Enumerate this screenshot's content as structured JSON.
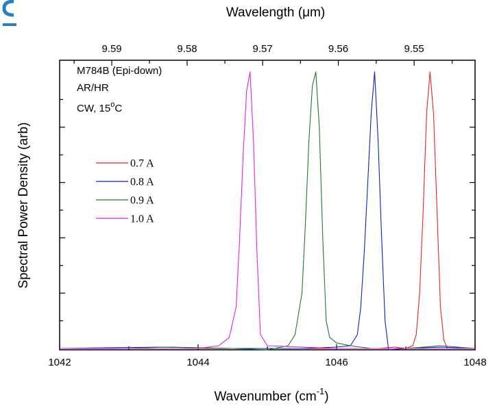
{
  "chart_data": {
    "type": "line",
    "xlabel": "Wavenumber (cm",
    "xlabel_sup": "-1",
    "xlabel_end": ")",
    "ylabel": "Spectral Power Density (arb)",
    "x2label": "Wavelength (μm)",
    "xlim": [
      1042,
      1048
    ],
    "ylim": [
      0,
      1.0
    ],
    "x_ticks": [
      1042,
      1044,
      1046,
      1048
    ],
    "x_tick_labels": [
      "1042",
      "1044",
      "1046",
      "1048"
    ],
    "x2_ticks": [
      9.59,
      9.58,
      9.57,
      9.56,
      9.55
    ],
    "x2_tick_labels": [
      "9.59",
      "9.58",
      "9.57",
      "9.56",
      "9.55"
    ],
    "y_major_ticks": [
      0.2,
      0.4,
      0.6,
      0.8
    ],
    "annotation": {
      "line1": "M784B (Epi-down)",
      "line2": "AR/HR",
      "line3_pre": "CW, 15",
      "line3_sup": "o",
      "line3_post": "C"
    },
    "legend_position": "left-middle",
    "series": [
      {
        "name": "0.7 A",
        "color": "#e8202a",
        "points": [
          [
            1042.0,
            0.0
          ],
          [
            1043.5,
            0.0
          ],
          [
            1045.5,
            0.0
          ],
          [
            1046.6,
            0.0
          ],
          [
            1046.85,
            0.005
          ],
          [
            1047.0,
            0.0
          ],
          [
            1047.1,
            0.01
          ],
          [
            1047.15,
            0.05
          ],
          [
            1047.2,
            0.2
          ],
          [
            1047.25,
            0.5
          ],
          [
            1047.3,
            0.85
          ],
          [
            1047.35,
            1.0
          ],
          [
            1047.4,
            0.85
          ],
          [
            1047.45,
            0.5
          ],
          [
            1047.5,
            0.15
          ],
          [
            1047.55,
            0.03
          ],
          [
            1047.6,
            0.0
          ],
          [
            1048.0,
            0.0
          ]
        ]
      },
      {
        "name": "0.8 A",
        "color": "#1020c0",
        "points": [
          [
            1042.0,
            0.0
          ],
          [
            1043.5,
            0.005
          ],
          [
            1044.5,
            0.0
          ],
          [
            1045.5,
            0.0
          ],
          [
            1046.0,
            0.005
          ],
          [
            1046.2,
            0.01
          ],
          [
            1046.3,
            0.05
          ],
          [
            1046.35,
            0.15
          ],
          [
            1046.4,
            0.35
          ],
          [
            1046.45,
            0.6
          ],
          [
            1046.5,
            0.85
          ],
          [
            1046.55,
            1.0
          ],
          [
            1046.6,
            0.75
          ],
          [
            1046.65,
            0.4
          ],
          [
            1046.7,
            0.1
          ],
          [
            1046.75,
            -0.005
          ],
          [
            1047.0,
            0.0
          ],
          [
            1047.5,
            0.005
          ],
          [
            1048.0,
            0.0
          ]
        ]
      },
      {
        "name": "0.9 A",
        "color": "#1a7a2a",
        "points": [
          [
            1042.0,
            0.0
          ],
          [
            1043.0,
            0.0
          ],
          [
            1043.5,
            0.005
          ],
          [
            1044.5,
            0.0
          ],
          [
            1045.0,
            -0.005
          ],
          [
            1045.3,
            0.01
          ],
          [
            1045.4,
            0.05
          ],
          [
            1045.5,
            0.2
          ],
          [
            1045.55,
            0.45
          ],
          [
            1045.6,
            0.75
          ],
          [
            1045.65,
            0.95
          ],
          [
            1045.7,
            1.0
          ],
          [
            1045.75,
            0.8
          ],
          [
            1045.8,
            0.4
          ],
          [
            1045.85,
            0.1
          ],
          [
            1045.9,
            0.04
          ],
          [
            1046.0,
            0.02
          ],
          [
            1046.2,
            0.01
          ],
          [
            1046.5,
            0.0
          ],
          [
            1047.0,
            0.0
          ],
          [
            1047.5,
            0.01
          ],
          [
            1048.0,
            0.0
          ]
        ]
      },
      {
        "name": "1.0 A",
        "color": "#e020e0",
        "points": [
          [
            1042.0,
            0.0
          ],
          [
            1043.0,
            0.0
          ],
          [
            1044.0,
            0.0
          ],
          [
            1044.3,
            0.01
          ],
          [
            1044.45,
            0.04
          ],
          [
            1044.55,
            0.15
          ],
          [
            1044.6,
            0.4
          ],
          [
            1044.65,
            0.7
          ],
          [
            1044.7,
            0.93
          ],
          [
            1044.75,
            1.0
          ],
          [
            1044.8,
            0.75
          ],
          [
            1044.85,
            0.35
          ],
          [
            1044.9,
            0.05
          ],
          [
            1045.0,
            0.01
          ],
          [
            1045.5,
            0.005
          ],
          [
            1046.0,
            0.0
          ],
          [
            1047.0,
            0.0
          ],
          [
            1048.0,
            0.0
          ]
        ]
      }
    ]
  },
  "logo": {
    "name": "partial-logo",
    "color": "#2a7fc0"
  }
}
